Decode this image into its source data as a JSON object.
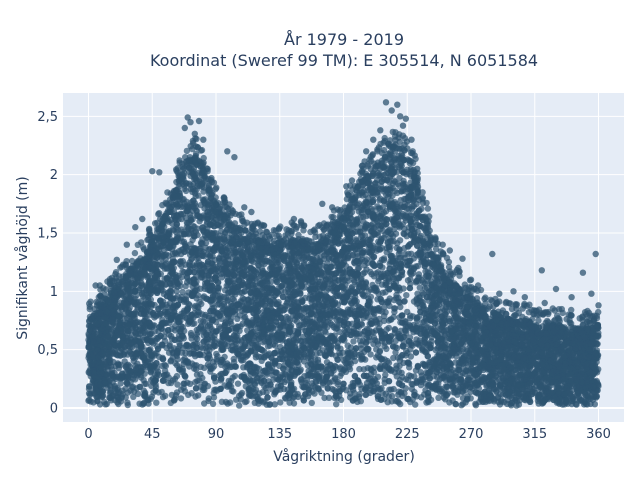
{
  "chart_data": {
    "type": "scatter",
    "title_line1": "År 1979 - 2019",
    "title_line2": "Koordinat (Sweref 99 TM): E 305514, N 6051584",
    "xlabel": "Vågriktning (grader)",
    "ylabel": "Signifikant våghöjd (m)",
    "xlim": [
      -18,
      378
    ],
    "ylim": [
      -0.12,
      2.7
    ],
    "xticks": [
      0,
      45,
      90,
      135,
      180,
      225,
      270,
      315,
      360
    ],
    "xtick_labels": [
      "0",
      "45",
      "90",
      "135",
      "180",
      "225",
      "270",
      "315",
      "360"
    ],
    "yticks": [
      0,
      0.5,
      1,
      1.5,
      2,
      2.5
    ],
    "ytick_labels": [
      "0",
      "0,5",
      "1",
      "1,5",
      "2",
      "2,5"
    ],
    "grid": true,
    "plot_background": "#E5ECF6",
    "marker_color": "#2E5470",
    "envelope": {
      "x": [
        0,
        10,
        20,
        30,
        40,
        50,
        60,
        70,
        75,
        80,
        90,
        100,
        110,
        120,
        130,
        140,
        150,
        160,
        170,
        180,
        190,
        200,
        210,
        220,
        225,
        230,
        240,
        250,
        260,
        270,
        280,
        290,
        300,
        310,
        320,
        330,
        340,
        350,
        360
      ],
      "upper": [
        0.75,
        0.9,
        1.05,
        1.2,
        1.35,
        1.55,
        1.85,
        2.15,
        2.2,
        2.1,
        1.75,
        1.6,
        1.5,
        1.45,
        1.4,
        1.45,
        1.45,
        1.4,
        1.5,
        1.65,
        1.9,
        2.05,
        2.2,
        2.25,
        2.2,
        2.05,
        1.55,
        1.2,
        1.05,
        0.95,
        0.85,
        0.8,
        0.75,
        0.75,
        0.7,
        0.72,
        0.7,
        0.68,
        0.72
      ],
      "lower": 0.02
    },
    "outliers": [
      {
        "x": 70,
        "y": 2.49
      },
      {
        "x": 72,
        "y": 2.45
      },
      {
        "x": 78,
        "y": 2.46
      },
      {
        "x": 75,
        "y": 2.35
      },
      {
        "x": 68,
        "y": 2.4
      },
      {
        "x": 81,
        "y": 2.3
      },
      {
        "x": 45,
        "y": 2.03
      },
      {
        "x": 50,
        "y": 2.02
      },
      {
        "x": 98,
        "y": 2.2
      },
      {
        "x": 103,
        "y": 2.15
      },
      {
        "x": 110,
        "y": 1.72
      },
      {
        "x": 115,
        "y": 1.68
      },
      {
        "x": 20,
        "y": 1.27
      },
      {
        "x": 27,
        "y": 1.4
      },
      {
        "x": 33,
        "y": 1.55
      },
      {
        "x": 38,
        "y": 1.62
      },
      {
        "x": 5,
        "y": 1.05
      },
      {
        "x": 8,
        "y": 1.05
      },
      {
        "x": 145,
        "y": 1.62
      },
      {
        "x": 150,
        "y": 1.6
      },
      {
        "x": 165,
        "y": 1.75
      },
      {
        "x": 172,
        "y": 1.72
      },
      {
        "x": 182,
        "y": 1.9
      },
      {
        "x": 186,
        "y": 1.95
      },
      {
        "x": 193,
        "y": 2.03
      },
      {
        "x": 196,
        "y": 2.2
      },
      {
        "x": 201,
        "y": 2.3
      },
      {
        "x": 206,
        "y": 2.38
      },
      {
        "x": 210,
        "y": 2.62
      },
      {
        "x": 214,
        "y": 2.55
      },
      {
        "x": 218,
        "y": 2.6
      },
      {
        "x": 220,
        "y": 2.5
      },
      {
        "x": 222,
        "y": 2.42
      },
      {
        "x": 224,
        "y": 2.48
      },
      {
        "x": 228,
        "y": 2.3
      },
      {
        "x": 232,
        "y": 2.05
      },
      {
        "x": 236,
        "y": 1.8
      },
      {
        "x": 240,
        "y": 1.6
      },
      {
        "x": 245,
        "y": 1.45
      },
      {
        "x": 250,
        "y": 1.4
      },
      {
        "x": 255,
        "y": 1.35
      },
      {
        "x": 261,
        "y": 1.2
      },
      {
        "x": 264,
        "y": 1.28
      },
      {
        "x": 270,
        "y": 1.1
      },
      {
        "x": 275,
        "y": 1.05
      },
      {
        "x": 285,
        "y": 1.32
      },
      {
        "x": 290,
        "y": 0.98
      },
      {
        "x": 300,
        "y": 1.0
      },
      {
        "x": 308,
        "y": 0.95
      },
      {
        "x": 320,
        "y": 1.18
      },
      {
        "x": 322,
        "y": 0.9
      },
      {
        "x": 330,
        "y": 1.02
      },
      {
        "x": 341,
        "y": 0.95
      },
      {
        "x": 349,
        "y": 1.16
      },
      {
        "x": 355,
        "y": 0.98
      },
      {
        "x": 358,
        "y": 1.32
      },
      {
        "x": 360,
        "y": 0.88
      }
    ]
  }
}
